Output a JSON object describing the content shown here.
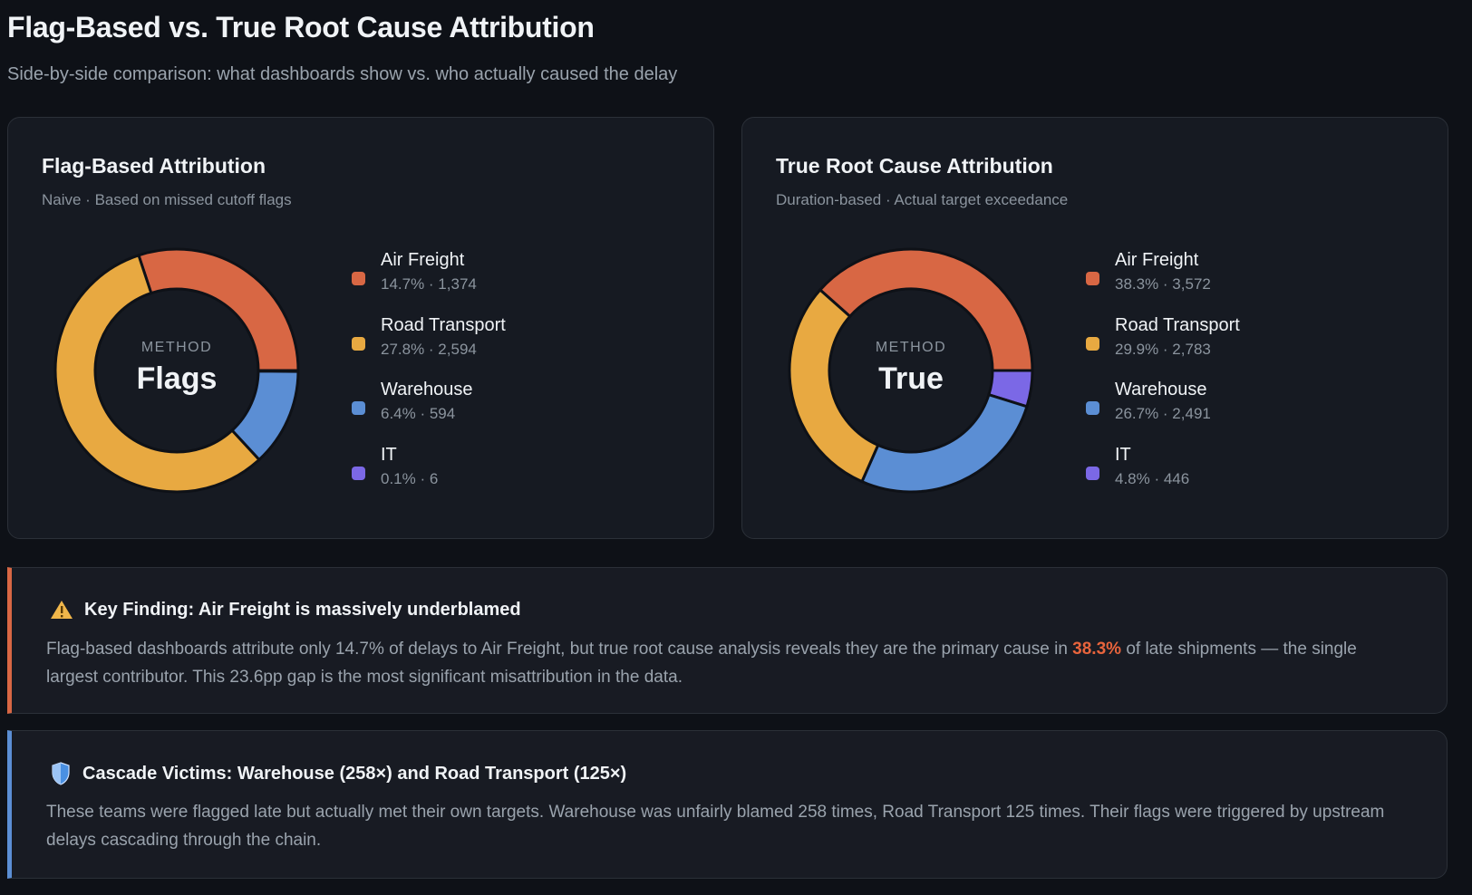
{
  "header": {
    "title": "Flag-Based vs. True Root Cause Attribution",
    "subtitle": "Side-by-side comparison: what dashboards show vs. who actually caused the delay"
  },
  "chart_data": [
    {
      "type": "pie",
      "title": "Flag-Based Attribution",
      "subtitle": "Naive · Based on missed cutoff flags",
      "center_label": "METHOD",
      "center_value": "Flags",
      "categories": [
        "Air Freight",
        "Road Transport",
        "Warehouse",
        "IT"
      ],
      "percent_labels": [
        "14.7%",
        "27.8%",
        "6.4%",
        "0.1%"
      ],
      "values": [
        1374,
        2594,
        594,
        6
      ],
      "value_labels": [
        "1,374",
        "2,594",
        "594",
        "6"
      ]
    },
    {
      "type": "pie",
      "title": "True Root Cause Attribution",
      "subtitle": "Duration-based · Actual target exceedance",
      "center_label": "METHOD",
      "center_value": "True",
      "categories": [
        "Air Freight",
        "Road Transport",
        "Warehouse",
        "IT"
      ],
      "percent_labels": [
        "38.3%",
        "29.9%",
        "26.7%",
        "4.8%"
      ],
      "values": [
        3572,
        2783,
        2491,
        446
      ],
      "value_labels": [
        "3,572",
        "2,783",
        "2,491",
        "446"
      ]
    }
  ],
  "colors": {
    "Air Freight": "#d86744",
    "Road Transport": "#e8a941",
    "Warehouse": "#5b8ed4",
    "IT": "#7b68e6",
    "finding_accent": "#d86744",
    "cascade_accent": "#5b8ed4"
  },
  "findings": [
    {
      "icon": "warning-icon",
      "title": "Key Finding: Air Freight is massively underblamed",
      "body_pre": "Flag-based dashboards attribute only 14.7% of delays to Air Freight, but true root cause analysis reveals they are the primary cause in ",
      "highlight": "38.3%",
      "body_post": " of late shipments — the single largest contributor. This 23.6pp gap is the most significant misattribution in the data."
    },
    {
      "icon": "shield-icon",
      "title": "Cascade Victims: Warehouse (258×) and Road Transport (125×)",
      "body": "These teams were flagged late but actually met their own targets. Warehouse was unfairly blamed 258 times, Road Transport 125 times. Their flags were triggered by upstream delays cascading through the chain."
    }
  ]
}
